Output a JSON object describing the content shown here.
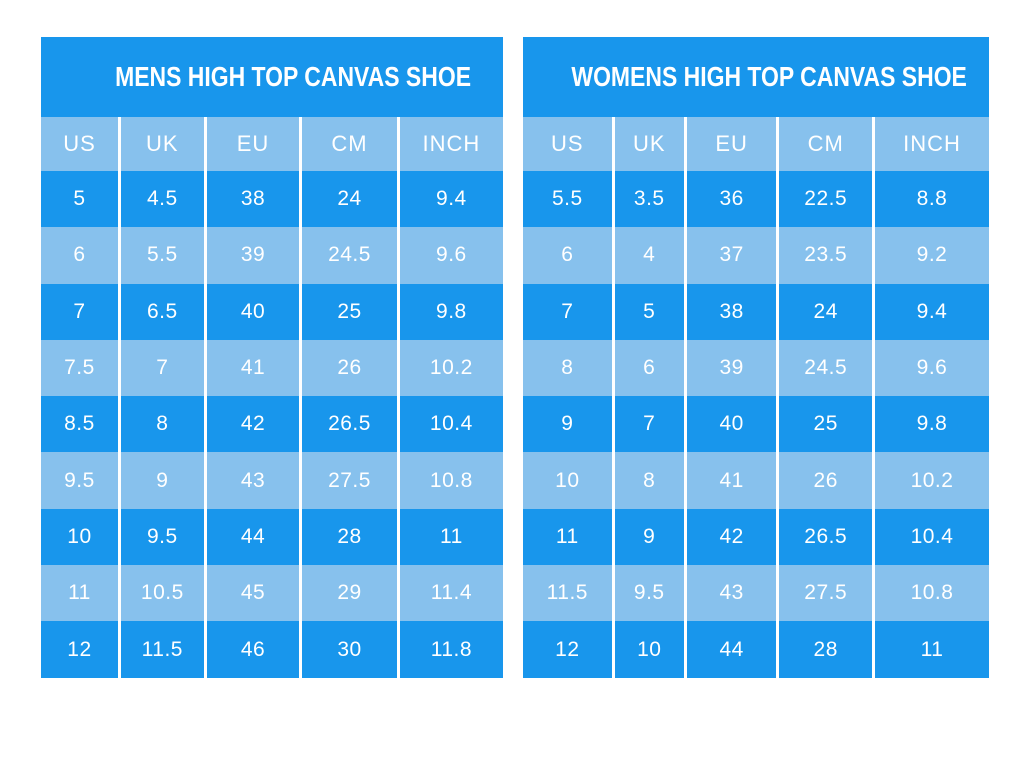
{
  "colors": {
    "dark_blue": "#1896ec",
    "light_blue": "#87c1ed",
    "text": "#ffffff",
    "background": "#ffffff"
  },
  "chart_data": [
    {
      "type": "table",
      "title": "MENS HIGH TOP CANVAS SHOE",
      "columns": [
        "US",
        "UK",
        "EU",
        "CM",
        "INCH"
      ],
      "rows": [
        [
          "5",
          "4.5",
          "38",
          "24",
          "9.4"
        ],
        [
          "6",
          "5.5",
          "39",
          "24.5",
          "9.6"
        ],
        [
          "7",
          "6.5",
          "40",
          "25",
          "9.8"
        ],
        [
          "7.5",
          "7",
          "41",
          "26",
          "10.2"
        ],
        [
          "8.5",
          "8",
          "42",
          "26.5",
          "10.4"
        ],
        [
          "9.5",
          "9",
          "43",
          "27.5",
          "10.8"
        ],
        [
          "10",
          "9.5",
          "44",
          "28",
          "11"
        ],
        [
          "11",
          "10.5",
          "45",
          "29",
          "11.4"
        ],
        [
          "12",
          "11.5",
          "46",
          "30",
          "11.8"
        ]
      ]
    },
    {
      "type": "table",
      "title": "WOMENS HIGH TOP CANVAS SHOE",
      "columns": [
        "US",
        "UK",
        "EU",
        "CM",
        "INCH"
      ],
      "rows": [
        [
          "5.5",
          "3.5",
          "36",
          "22.5",
          "8.8"
        ],
        [
          "6",
          "4",
          "37",
          "23.5",
          "9.2"
        ],
        [
          "7",
          "5",
          "38",
          "24",
          "9.4"
        ],
        [
          "8",
          "6",
          "39",
          "24.5",
          "9.6"
        ],
        [
          "9",
          "7",
          "40",
          "25",
          "9.8"
        ],
        [
          "10",
          "8",
          "41",
          "26",
          "10.2"
        ],
        [
          "11",
          "9",
          "42",
          "26.5",
          "10.4"
        ],
        [
          "11.5",
          "9.5",
          "43",
          "27.5",
          "10.8"
        ],
        [
          "12",
          "10",
          "44",
          "28",
          "11"
        ]
      ]
    }
  ]
}
